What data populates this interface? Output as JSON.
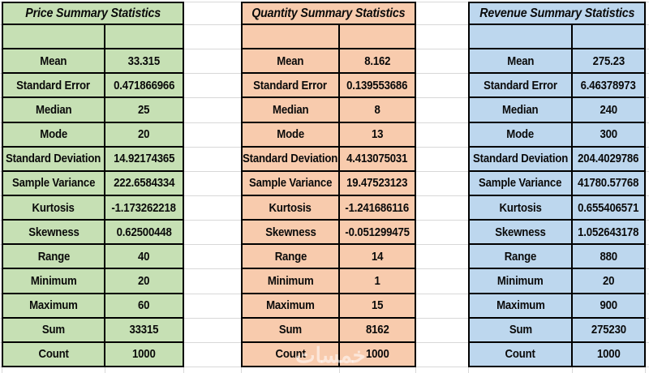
{
  "tables": [
    {
      "title": "Price Summary Statistics",
      "fill": "#c6e0b4",
      "rows": [
        {
          "label": "Mean",
          "value": "33.315"
        },
        {
          "label": "Standard Error",
          "value": "0.471866966"
        },
        {
          "label": "Median",
          "value": "25"
        },
        {
          "label": "Mode",
          "value": "20"
        },
        {
          "label": "Standard Deviation",
          "value": "14.92174365"
        },
        {
          "label": "Sample Variance",
          "value": "222.6584334"
        },
        {
          "label": "Kurtosis",
          "value": "-1.173262218"
        },
        {
          "label": "Skewness",
          "value": "0.62500448"
        },
        {
          "label": "Range",
          "value": "40"
        },
        {
          "label": "Minimum",
          "value": "20"
        },
        {
          "label": "Maximum",
          "value": "60"
        },
        {
          "label": "Sum",
          "value": "33315"
        },
        {
          "label": "Count",
          "value": "1000"
        }
      ]
    },
    {
      "title": "Quantity Summary Statistics",
      "fill": "#f8cbad",
      "rows": [
        {
          "label": "Mean",
          "value": "8.162"
        },
        {
          "label": "Standard Error",
          "value": "0.139553686"
        },
        {
          "label": "Median",
          "value": "8"
        },
        {
          "label": "Mode",
          "value": "13"
        },
        {
          "label": "Standard Deviation",
          "value": "4.413075031"
        },
        {
          "label": "Sample Variance",
          "value": "19.47523123"
        },
        {
          "label": "Kurtosis",
          "value": "-1.241686116"
        },
        {
          "label": "Skewness",
          "value": "-0.051299475"
        },
        {
          "label": "Range",
          "value": "14"
        },
        {
          "label": "Minimum",
          "value": "1"
        },
        {
          "label": "Maximum",
          "value": "15"
        },
        {
          "label": "Sum",
          "value": "8162"
        },
        {
          "label": "Count",
          "value": "1000"
        }
      ]
    },
    {
      "title": "Revenue Summary Statistics",
      "fill": "#bdd7ee",
      "rows": [
        {
          "label": "Mean",
          "value": "275.23"
        },
        {
          "label": "Standard Error",
          "value": "6.46378973"
        },
        {
          "label": "Median",
          "value": "240"
        },
        {
          "label": "Mode",
          "value": "300"
        },
        {
          "label": "Standard Deviation",
          "value": "204.4029786"
        },
        {
          "label": "Sample Variance",
          "value": "41780.57768"
        },
        {
          "label": "Kurtosis",
          "value": "0.655406571"
        },
        {
          "label": "Skewness",
          "value": "1.052643178"
        },
        {
          "label": "Range",
          "value": "880"
        },
        {
          "label": "Minimum",
          "value": "20"
        },
        {
          "label": "Maximum",
          "value": "900"
        },
        {
          "label": "Sum",
          "value": "275230"
        },
        {
          "label": "Count",
          "value": "1000"
        }
      ]
    }
  ],
  "watermark": {
    "text": "خمسات"
  }
}
